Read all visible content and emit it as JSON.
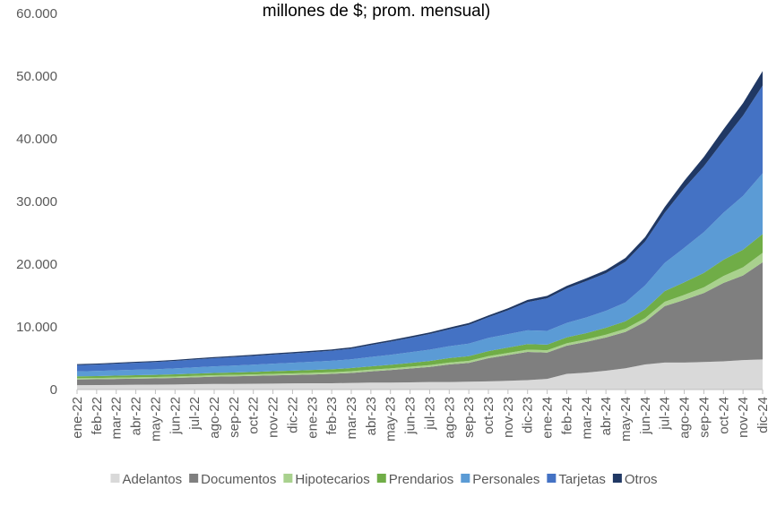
{
  "chart_data": {
    "type": "stacked_area",
    "title": "millones de $; prom. mensual)",
    "categories": [
      "ene-22",
      "feb-22",
      "mar-22",
      "abr-22",
      "may-22",
      "jun-22",
      "jul-22",
      "ago-22",
      "sep-22",
      "oct-22",
      "nov-22",
      "dic-22",
      "ene-23",
      "feb-23",
      "mar-23",
      "abr-23",
      "may-23",
      "jun-23",
      "jul-23",
      "ago-23",
      "sep-23",
      "oct-23",
      "nov-23",
      "dic-23",
      "ene-24",
      "feb-24",
      "mar-24",
      "abr-24",
      "may-24",
      "jun-24",
      "jul-24",
      "ago-24",
      "sep-24",
      "oct-24",
      "nov-24",
      "dic-24"
    ],
    "series": [
      {
        "name": "Adelantos",
        "color": "#d9d9d9",
        "values": [
          700,
          720,
          740,
          760,
          780,
          800,
          850,
          900,
          900,
          920,
          950,
          980,
          1000,
          1000,
          1050,
          1100,
          1100,
          1150,
          1200,
          1200,
          1250,
          1300,
          1400,
          1500,
          1700,
          2500,
          2700,
          3000,
          3400,
          4000,
          4300,
          4300,
          4400,
          4500,
          4700,
          4800
        ]
      },
      {
        "name": "Documentos",
        "color": "#7f7f7f",
        "values": [
          900,
          920,
          950,
          980,
          1000,
          1050,
          1100,
          1150,
          1200,
          1250,
          1300,
          1350,
          1400,
          1500,
          1600,
          1800,
          2000,
          2200,
          2400,
          2800,
          3000,
          3700,
          4100,
          4500,
          4200,
          4500,
          4900,
          5300,
          5800,
          6800,
          9000,
          10000,
          11000,
          12500,
          13500,
          15500
        ]
      },
      {
        "name": "Hipotecarios",
        "color": "#a9d18e",
        "values": [
          200,
          200,
          210,
          210,
          220,
          220,
          230,
          230,
          240,
          240,
          250,
          250,
          260,
          260,
          270,
          270,
          280,
          290,
          300,
          310,
          320,
          330,
          340,
          350,
          360,
          380,
          400,
          450,
          500,
          600,
          700,
          800,
          900,
          1100,
          1300,
          1500
        ]
      },
      {
        "name": "Prendarios",
        "color": "#70ad47",
        "values": [
          300,
          310,
          320,
          330,
          340,
          350,
          360,
          370,
          380,
          400,
          420,
          440,
          460,
          480,
          500,
          520,
          560,
          600,
          650,
          700,
          750,
          800,
          850,
          900,
          900,
          950,
          1000,
          1100,
          1200,
          1400,
          1700,
          2000,
          2300,
          2600,
          2800,
          3000
        ]
      },
      {
        "name": "Personales",
        "color": "#5b9bd5",
        "values": [
          800,
          820,
          850,
          880,
          900,
          950,
          1000,
          1050,
          1100,
          1150,
          1200,
          1250,
          1300,
          1350,
          1400,
          1500,
          1600,
          1700,
          1800,
          1900,
          2000,
          2100,
          2150,
          2200,
          2200,
          2300,
          2500,
          2700,
          3000,
          3800,
          4500,
          5500,
          6500,
          7500,
          8600,
          9700
        ]
      },
      {
        "name": "Tarjetas",
        "color": "#4472c4",
        "values": [
          1000,
          1020,
          1050,
          1100,
          1150,
          1200,
          1250,
          1300,
          1350,
          1400,
          1450,
          1500,
          1550,
          1600,
          1700,
          1900,
          2100,
          2300,
          2500,
          2700,
          3000,
          3300,
          3800,
          4500,
          5200,
          5500,
          5800,
          6000,
          6500,
          7000,
          8000,
          9500,
          10500,
          11500,
          12800,
          14000
        ]
      },
      {
        "name": "Otros",
        "color": "#203864",
        "values": [
          150,
          150,
          160,
          160,
          170,
          170,
          180,
          180,
          190,
          190,
          200,
          200,
          210,
          210,
          220,
          230,
          240,
          250,
          260,
          270,
          280,
          300,
          320,
          350,
          380,
          400,
          450,
          500,
          600,
          700,
          900,
          1200,
          1500,
          1800,
          2000,
          2300
        ]
      }
    ],
    "ylim": [
      0,
      60000
    ],
    "yticks": [
      0,
      {
        "value": 10000,
        "label": "10.000"
      },
      {
        "value": 20000,
        "label": "20.000"
      },
      {
        "value": 30000,
        "label": "30.000"
      },
      {
        "value": 40000,
        "label": "40.000"
      },
      {
        "value": 50000,
        "label": "50.000"
      },
      {
        "value": 60000,
        "label": "60.000"
      }
    ],
    "grid": false,
    "legend": "bottom"
  }
}
